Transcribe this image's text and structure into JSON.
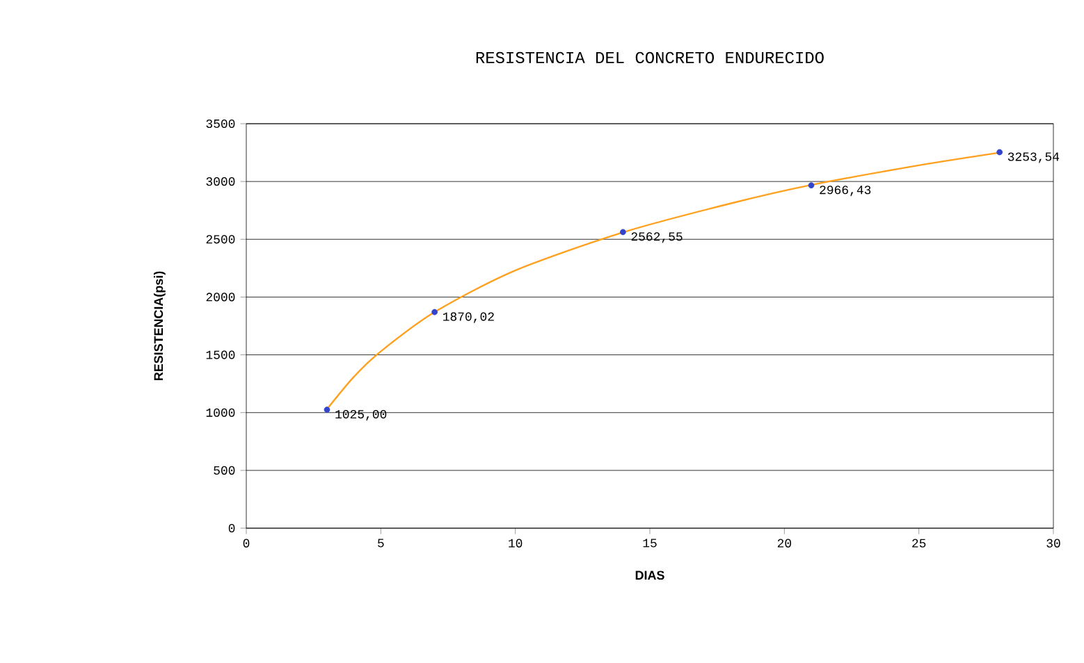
{
  "chart_data": {
    "type": "scatter",
    "title": "RESISTENCIA DEL CONCRETO ENDURECIDO",
    "xlabel": "DIAS",
    "ylabel": "RESISTENCIA(psi)",
    "xlim": [
      0,
      30
    ],
    "xticks": [
      0,
      5,
      10,
      15,
      20,
      25,
      30
    ],
    "ylim": [
      0,
      3500
    ],
    "yticks": [
      0,
      500,
      1000,
      1500,
      2000,
      2500,
      3000,
      3500
    ],
    "grid": "y",
    "series": [
      {
        "type": "scatter",
        "color": "#3344cc",
        "marker": "circle",
        "x": [
          3,
          7,
          14,
          21,
          28
        ],
        "values": [
          1025.0,
          1870.02,
          2562.55,
          2966.43,
          3253.54
        ],
        "value_labels": [
          "1025,00",
          "1870,02",
          "2562,55",
          "2966,43",
          "3253,54"
        ]
      },
      {
        "type": "line",
        "color": "#ffa01e",
        "marker": "none",
        "line_style": "solid",
        "x": [
          3,
          4,
          5,
          7,
          10,
          14,
          18,
          21,
          25,
          28
        ],
        "values": [
          1030,
          1310,
          1530,
          1870,
          2230,
          2560,
          2810,
          2970,
          3140,
          3250
        ]
      }
    ]
  }
}
